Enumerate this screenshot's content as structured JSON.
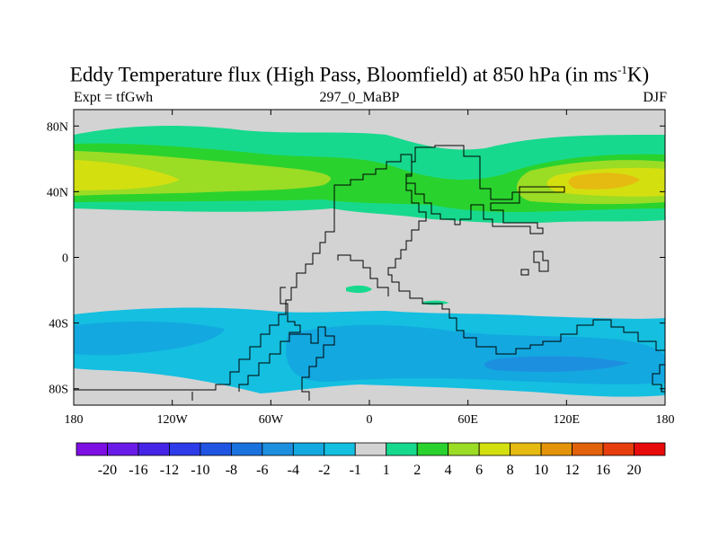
{
  "title_main": "Eddy Temperature flux (High Pass, Bloomfield) at 850 hPa (in ms",
  "title_sup": "-1",
  "title_end": "K)",
  "subtitle_left": "Expt = tfGwh",
  "subtitle_center": "297_0_MaBP",
  "subtitle_right": "DJF",
  "lat_ticks": [
    "80N",
    "40N",
    "0",
    "40S",
    "80S"
  ],
  "lon_ticks": [
    "180",
    "120W",
    "60W",
    "0",
    "60E",
    "120E",
    "180"
  ],
  "colorbar": {
    "labels": [
      "-20",
      "-16",
      "-12",
      "-10",
      "-8",
      "-6",
      "-4",
      "-2",
      "-1",
      "1",
      "2",
      "4",
      "6",
      "8",
      "10",
      "12",
      "16",
      "20"
    ],
    "colors": [
      "#7d0fe3",
      "#6a1be8",
      "#4524e6",
      "#2d3be8",
      "#1f55e2",
      "#1a72df",
      "#1d8fdf",
      "#13a8e0",
      "#14bfe0",
      "#d3d3d3",
      "#17d98e",
      "#2ad22e",
      "#9bdc25",
      "#d4df10",
      "#e5ba11",
      "#e39409",
      "#e2620b",
      "#e63e0c",
      "#e80b0b"
    ]
  },
  "map_colors": {
    "land": "#d3d3d3",
    "l1": "#17d98e",
    "l2": "#2ad22e",
    "l3": "#9bdc25",
    "l4": "#d4df10",
    "l5": "#e5ba11",
    "s1": "#14bfe0",
    "s2": "#13a8e0",
    "s3": "#1d8fdf"
  }
}
